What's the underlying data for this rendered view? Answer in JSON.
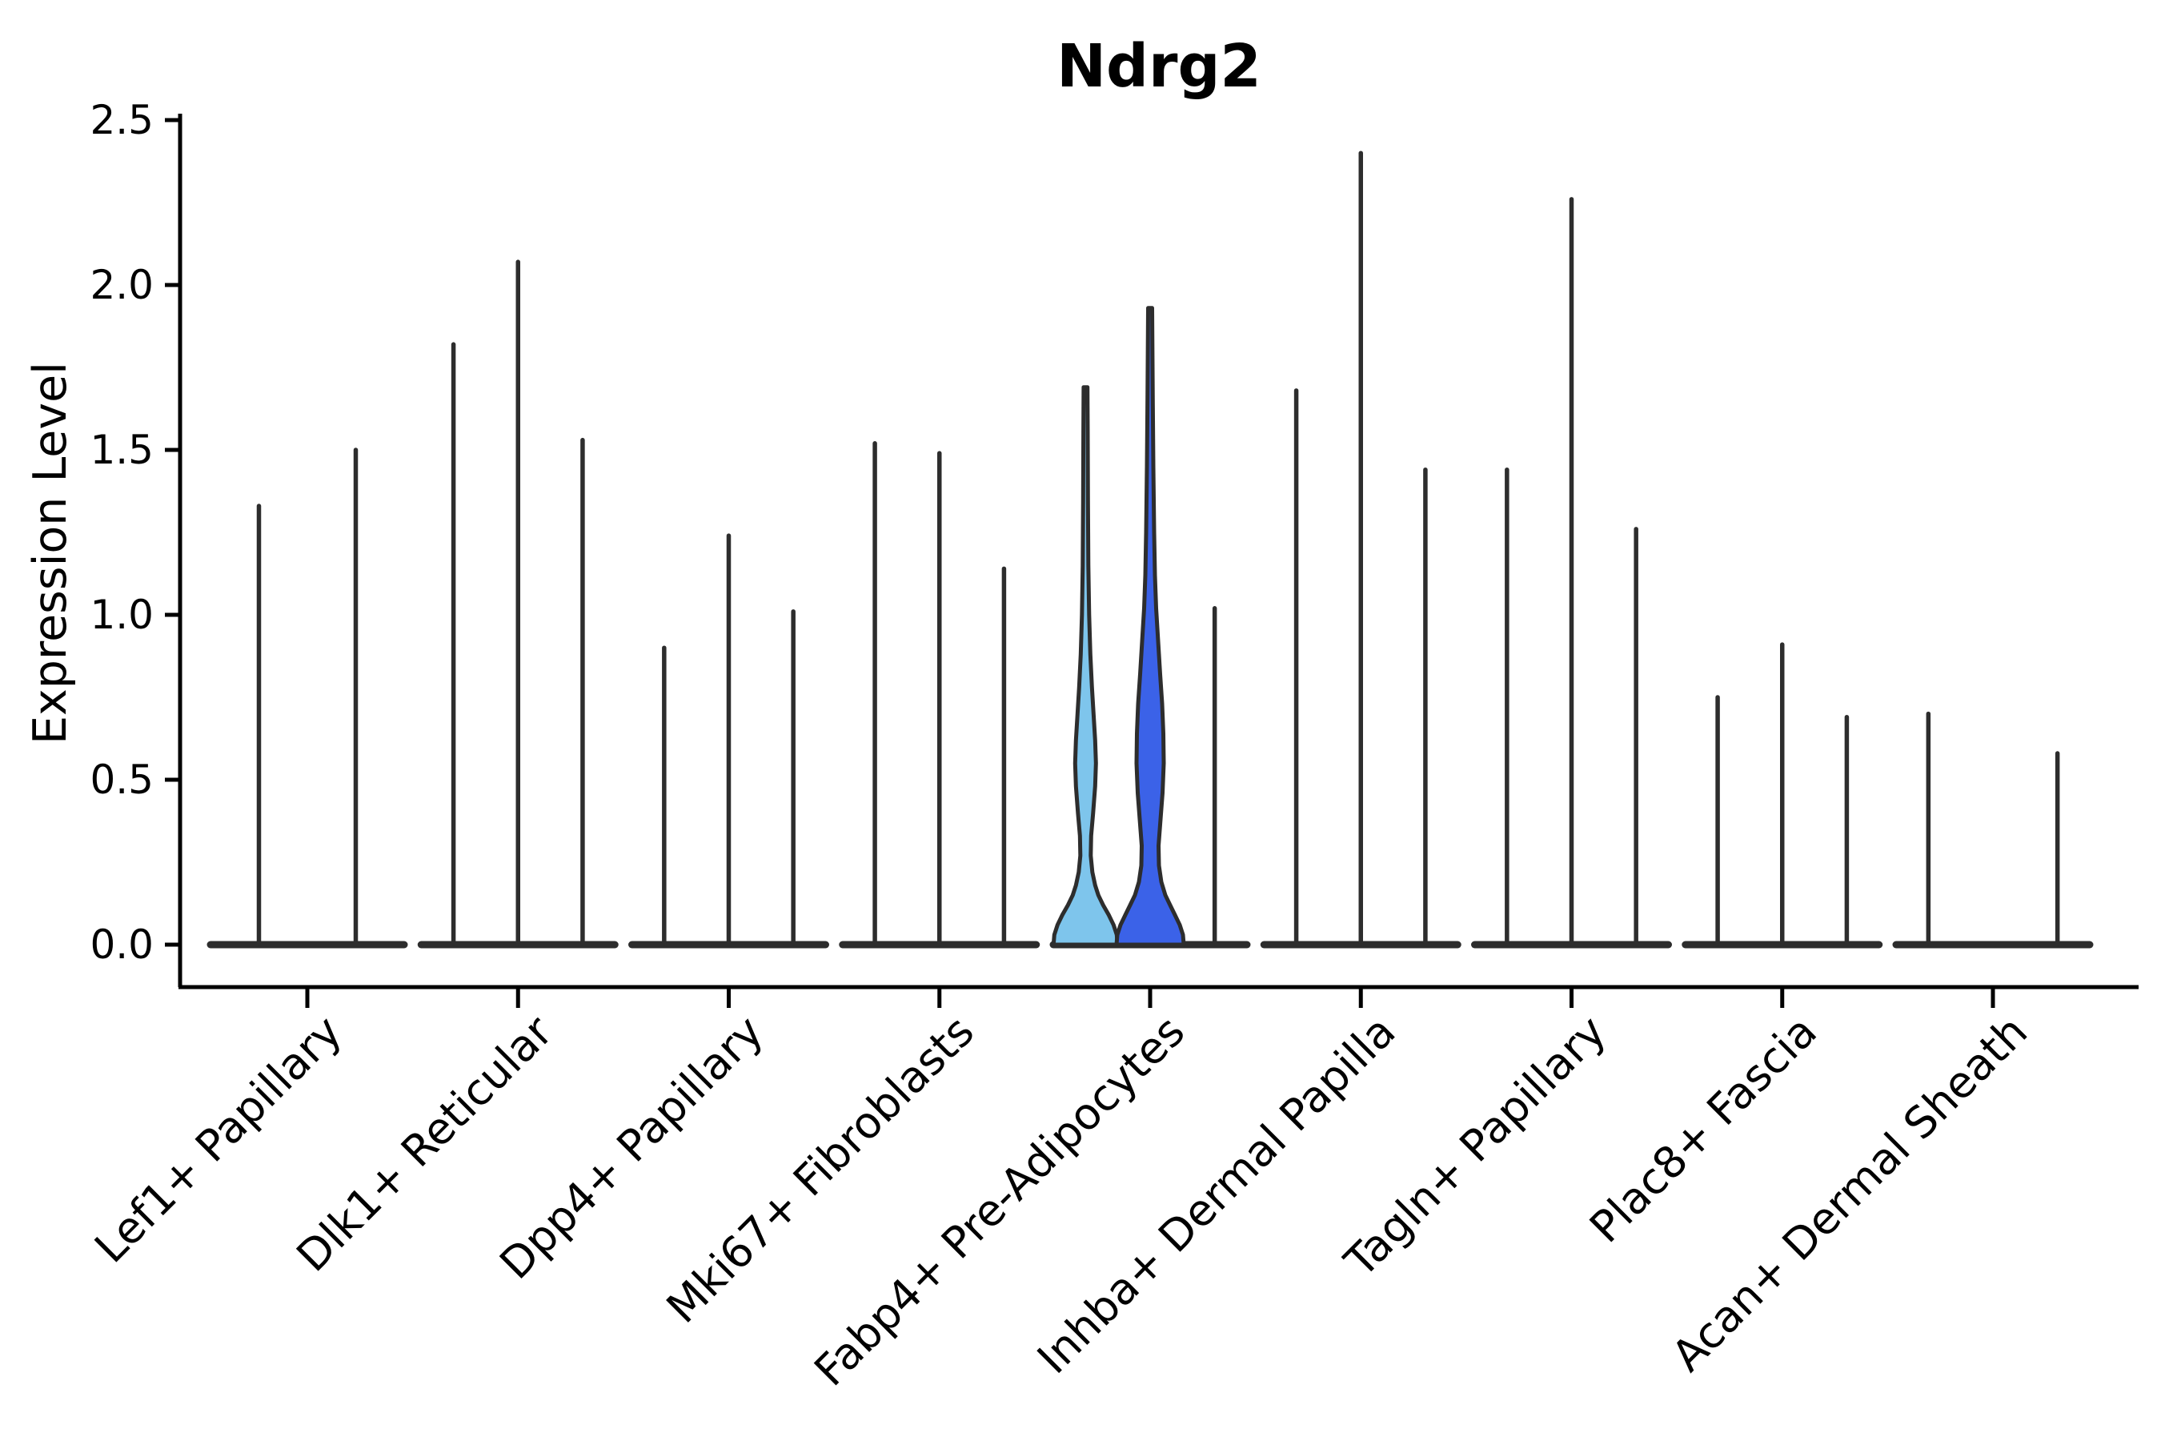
{
  "colors": {
    "background": "#ffffff",
    "axis": "#000000",
    "violin_outline": "#2d2d2d",
    "highlight_light_blue": "#7ec5ec",
    "highlight_royal_blue": "#3b62e8",
    "text": "#000000"
  },
  "chart_data": {
    "type": "violin",
    "title": "Ndrg2",
    "xlabel": "",
    "ylabel": "Expression Level",
    "ylim": [
      0,
      2.5
    ],
    "ytick_labels": [
      "0.0",
      "0.5",
      "1.0",
      "1.5",
      "2.0",
      "2.5"
    ],
    "ytick_values": [
      0.0,
      0.5,
      1.0,
      1.5,
      2.0,
      2.5
    ],
    "grid": false,
    "legend": "none",
    "description": "Violin plot of Ndrg2 expression per fibroblast cluster; most violins are collapsed needles at 0 with a thin spike to the max expression; two violins in Fabp4+ Pre-Adipocytes are filled blue with visible density.",
    "categories": [
      {
        "label": "Lef1+ Papillary",
        "violins": [
          {
            "max": 1.33
          },
          {
            "max": 1.5
          }
        ]
      },
      {
        "label": "Dlk1+ Reticular",
        "violins": [
          {
            "max": 1.82
          },
          {
            "max": 2.07
          },
          {
            "max": 1.53
          }
        ]
      },
      {
        "label": "Dpp4+ Papillary",
        "violins": [
          {
            "max": 0.9
          },
          {
            "max": 1.24
          },
          {
            "max": 1.01
          }
        ]
      },
      {
        "label": "Mki67+ Fibroblasts",
        "violins": [
          {
            "max": 1.52
          },
          {
            "max": 1.49
          },
          {
            "max": 1.14
          }
        ]
      },
      {
        "label": "Fabp4+ Pre-Adipocytes",
        "violins": [
          {
            "max": 1.69,
            "fill": "#7ec5ec",
            "profile": [
              [
                0,
                40
              ],
              [
                0.03,
                39
              ],
              [
                0.06,
                35
              ],
              [
                0.09,
                29
              ],
              [
                0.12,
                22
              ],
              [
                0.15,
                16
              ],
              [
                0.18,
                12
              ],
              [
                0.22,
                8.5
              ],
              [
                0.27,
                6.5
              ],
              [
                0.33,
                7
              ],
              [
                0.4,
                9.5
              ],
              [
                0.48,
                12
              ],
              [
                0.55,
                13
              ],
              [
                0.62,
                12
              ],
              [
                0.7,
                10
              ],
              [
                0.78,
                8
              ],
              [
                0.88,
                6
              ],
              [
                1.0,
                4.5
              ],
              [
                1.15,
                3.5
              ],
              [
                1.35,
                3.0
              ],
              [
                1.55,
                2.7
              ],
              [
                1.69,
                2.4
              ]
            ]
          },
          {
            "max": 1.93,
            "fill": "#3b62e8",
            "profile": [
              [
                0,
                42
              ],
              [
                0.03,
                41
              ],
              [
                0.06,
                37
              ],
              [
                0.09,
                31
              ],
              [
                0.12,
                25
              ],
              [
                0.15,
                19
              ],
              [
                0.19,
                14
              ],
              [
                0.24,
                11
              ],
              [
                0.3,
                10.5
              ],
              [
                0.38,
                13
              ],
              [
                0.46,
                15.5
              ],
              [
                0.55,
                17
              ],
              [
                0.64,
                16.5
              ],
              [
                0.73,
                15
              ],
              [
                0.82,
                12.5
              ],
              [
                0.92,
                10
              ],
              [
                1.02,
                7.5
              ],
              [
                1.12,
                6
              ],
              [
                1.25,
                5
              ],
              [
                1.45,
                4
              ],
              [
                1.65,
                3.3
              ],
              [
                1.93,
                2.5
              ]
            ]
          },
          {
            "max": 1.02
          }
        ]
      },
      {
        "label": "Inhba+ Dermal Papilla",
        "violins": [
          {
            "max": 1.68
          },
          {
            "max": 2.4
          },
          {
            "max": 1.44
          }
        ]
      },
      {
        "label": "Tagln+ Papillary",
        "violins": [
          {
            "max": 1.44
          },
          {
            "max": 2.26
          },
          {
            "max": 1.26
          }
        ]
      },
      {
        "label": "Plac8+ Fascia",
        "violins": [
          {
            "max": 0.75
          },
          {
            "max": 0.91
          },
          {
            "max": 0.69
          }
        ]
      },
      {
        "label": "Acan+ Dermal Sheath",
        "violins": [
          {
            "max": 0.7
          },
          {
            "max": 0.0
          },
          {
            "max": 0.58
          }
        ]
      }
    ]
  }
}
